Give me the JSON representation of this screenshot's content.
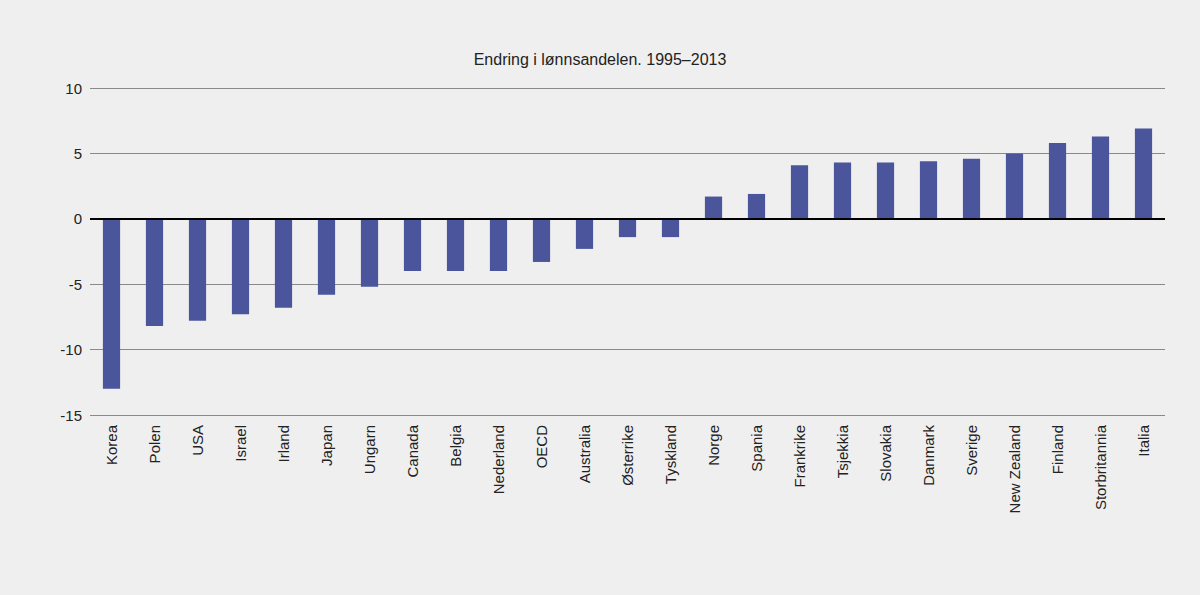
{
  "chart_data": {
    "type": "bar",
    "title": "Endring i lønnsandelen. 1995–2013",
    "categories": [
      "Korea",
      "Polen",
      "USA",
      "Israel",
      "Irland",
      "Japan",
      "Ungarn",
      "Canada",
      "Belgia",
      "Nederland",
      "OECD",
      "Australia",
      "Østerrike",
      "Tyskland",
      "Norge",
      "Spania",
      "Frankrike",
      "Tsjekkia",
      "Slovakia",
      "Danmark",
      "Sverige",
      "New Zealand",
      "Finland",
      "Storbritannia",
      "Italia"
    ],
    "values": [
      -13.0,
      -8.2,
      -7.8,
      -7.3,
      -6.8,
      -5.8,
      -5.2,
      -4.0,
      -4.0,
      -4.0,
      -3.3,
      -2.3,
      -1.4,
      -1.4,
      1.7,
      1.9,
      4.1,
      4.3,
      4.3,
      4.4,
      4.6,
      5.0,
      5.8,
      6.3,
      6.9
    ],
    "color": "#4a559b",
    "ylim": [
      -15,
      10
    ],
    "yticks": [
      -15,
      -10,
      -5,
      0,
      5,
      10
    ],
    "grid": true
  }
}
